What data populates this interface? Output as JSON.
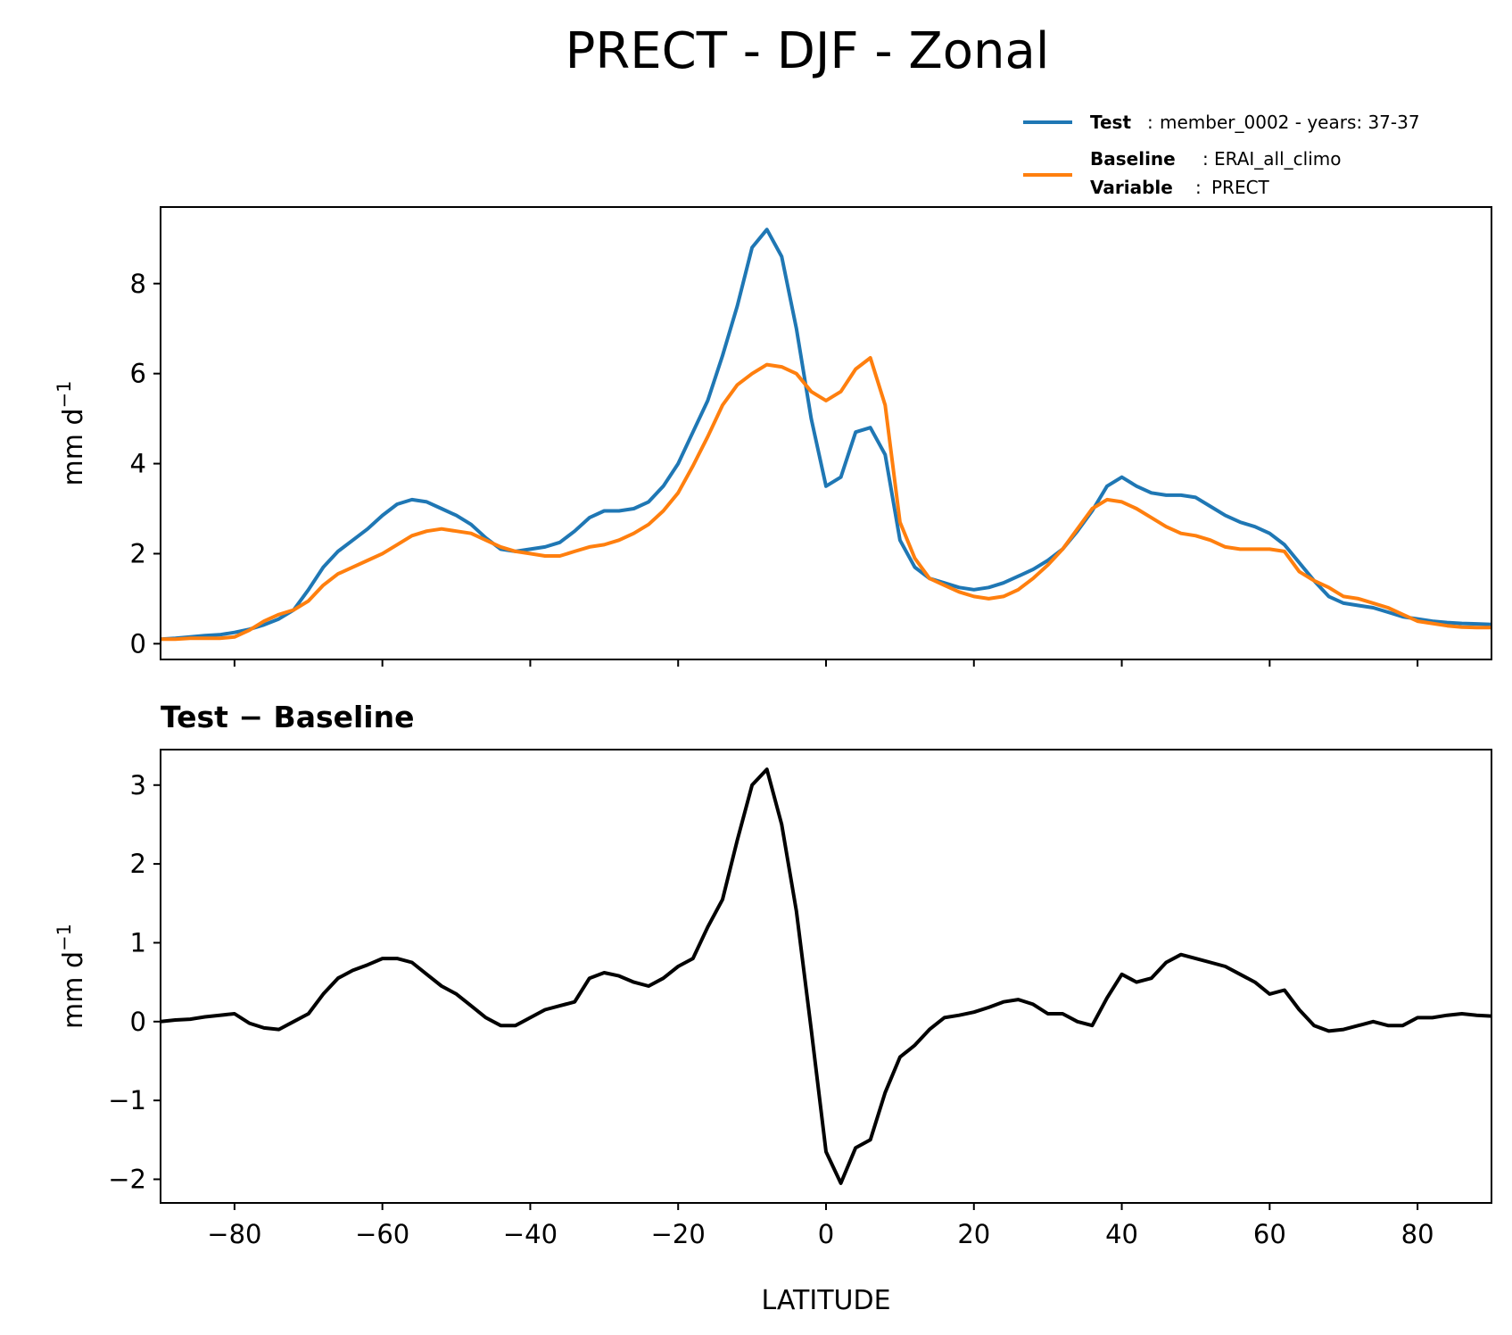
{
  "title": "PRECT - DJF - Zonal",
  "legend": {
    "test_label": "Test",
    "test_value": "member_0002 - years: 37-37",
    "baseline_label": "Baseline",
    "baseline_value": "ERAI_all_climo",
    "variable_label": "Variable",
    "variable_value": "PRECT",
    "separator": ":"
  },
  "colors": {
    "test": "#1f77b4",
    "baseline": "#ff7f0e",
    "diff": "#000000"
  },
  "chart_data": [
    {
      "type": "line",
      "title": "",
      "xlabel": "",
      "ylabel": "mm d",
      "ylabel_sup": "−1",
      "xlim": [
        -90,
        90
      ],
      "ylim": [
        -0.35,
        9.7
      ],
      "yticks": [
        0,
        2,
        4,
        6,
        8
      ],
      "ytick_labels": [
        "0",
        "2",
        "4",
        "6",
        "8"
      ],
      "xticks": [
        -80,
        -60,
        -40,
        -20,
        0,
        20,
        40,
        60,
        80
      ],
      "x": [
        -90,
        -88,
        -86,
        -84,
        -82,
        -80,
        -78,
        -76,
        -74,
        -72,
        -70,
        -68,
        -66,
        -64,
        -62,
        -60,
        -58,
        -56,
        -54,
        -52,
        -50,
        -48,
        -46,
        -44,
        -42,
        -40,
        -38,
        -36,
        -34,
        -32,
        -30,
        -28,
        -26,
        -24,
        -22,
        -20,
        -18,
        -16,
        -14,
        -12,
        -10,
        -8,
        -6,
        -4,
        -2,
        0,
        2,
        4,
        6,
        8,
        10,
        12,
        14,
        16,
        18,
        20,
        22,
        24,
        26,
        28,
        30,
        32,
        34,
        36,
        38,
        40,
        42,
        44,
        46,
        48,
        50,
        52,
        54,
        56,
        58,
        60,
        62,
        64,
        66,
        68,
        70,
        72,
        74,
        76,
        78,
        80,
        82,
        84,
        86,
        88,
        90
      ],
      "series": [
        {
          "name": "Test",
          "values": [
            0.1,
            0.12,
            0.15,
            0.18,
            0.2,
            0.25,
            0.32,
            0.42,
            0.55,
            0.75,
            1.2,
            1.7,
            2.05,
            2.3,
            2.55,
            2.85,
            3.1,
            3.2,
            3.15,
            3.0,
            2.85,
            2.65,
            2.35,
            2.1,
            2.05,
            2.1,
            2.15,
            2.25,
            2.5,
            2.8,
            2.95,
            2.95,
            3.0,
            3.15,
            3.5,
            4.0,
            4.7,
            5.4,
            6.4,
            7.5,
            8.8,
            9.2,
            8.6,
            7.0,
            5.0,
            3.5,
            3.7,
            4.7,
            4.8,
            4.2,
            2.3,
            1.7,
            1.45,
            1.35,
            1.25,
            1.2,
            1.25,
            1.35,
            1.5,
            1.65,
            1.85,
            2.1,
            2.5,
            2.95,
            3.5,
            3.7,
            3.5,
            3.35,
            3.3,
            3.3,
            3.25,
            3.05,
            2.85,
            2.7,
            2.6,
            2.45,
            2.2,
            1.8,
            1.4,
            1.05,
            0.9,
            0.85,
            0.8,
            0.7,
            0.6,
            0.55,
            0.5,
            0.47,
            0.45,
            0.44,
            0.43
          ]
        },
        {
          "name": "Baseline",
          "values": [
            0.1,
            0.1,
            0.12,
            0.12,
            0.12,
            0.15,
            0.3,
            0.5,
            0.65,
            0.75,
            0.95,
            1.3,
            1.55,
            1.7,
            1.85,
            2.0,
            2.2,
            2.4,
            2.5,
            2.55,
            2.5,
            2.45,
            2.3,
            2.15,
            2.05,
            2.0,
            1.95,
            1.95,
            2.05,
            2.15,
            2.2,
            2.3,
            2.45,
            2.65,
            2.95,
            3.35,
            3.95,
            4.6,
            5.3,
            5.75,
            6.0,
            6.2,
            6.15,
            6.0,
            5.6,
            5.4,
            5.6,
            6.1,
            6.35,
            5.3,
            2.7,
            1.9,
            1.45,
            1.3,
            1.15,
            1.05,
            1.0,
            1.05,
            1.2,
            1.45,
            1.75,
            2.1,
            2.55,
            3.0,
            3.2,
            3.15,
            3.0,
            2.8,
            2.6,
            2.45,
            2.4,
            2.3,
            2.15,
            2.1,
            2.1,
            2.1,
            2.05,
            1.6,
            1.4,
            1.25,
            1.05,
            1.0,
            0.9,
            0.8,
            0.65,
            0.5,
            0.45,
            0.4,
            0.37,
            0.36,
            0.36
          ]
        }
      ]
    },
    {
      "type": "line",
      "title": "Test − Baseline",
      "xlabel": "LATITUDE",
      "ylabel": "mm d",
      "ylabel_sup": "−1",
      "xlim": [
        -90,
        90
      ],
      "ylim": [
        -2.3,
        3.45
      ],
      "yticks": [
        -2,
        -1,
        0,
        1,
        2,
        3
      ],
      "ytick_labels": [
        "−2",
        "−1",
        "0",
        "1",
        "2",
        "3"
      ],
      "xticks": [
        -80,
        -60,
        -40,
        -20,
        0,
        20,
        40,
        60,
        80
      ],
      "xtick_labels": [
        "−80",
        "−60",
        "−40",
        "−20",
        "0",
        "20",
        "40",
        "60",
        "80"
      ],
      "x": [
        -90,
        -88,
        -86,
        -84,
        -82,
        -80,
        -78,
        -76,
        -74,
        -72,
        -70,
        -68,
        -66,
        -64,
        -62,
        -60,
        -58,
        -56,
        -54,
        -52,
        -50,
        -48,
        -46,
        -44,
        -42,
        -40,
        -38,
        -36,
        -34,
        -32,
        -30,
        -28,
        -26,
        -24,
        -22,
        -20,
        -18,
        -16,
        -14,
        -12,
        -10,
        -8,
        -6,
        -4,
        -2,
        0,
        2,
        4,
        6,
        8,
        10,
        12,
        14,
        16,
        18,
        20,
        22,
        24,
        26,
        28,
        30,
        32,
        34,
        36,
        38,
        40,
        42,
        44,
        46,
        48,
        50,
        52,
        54,
        56,
        58,
        60,
        62,
        64,
        66,
        68,
        70,
        72,
        74,
        76,
        78,
        80,
        82,
        84,
        86,
        88,
        90
      ],
      "series": [
        {
          "name": "Test − Baseline",
          "values": [
            0.0,
            0.02,
            0.03,
            0.06,
            0.08,
            0.1,
            -0.02,
            -0.08,
            -0.1,
            0.0,
            0.1,
            0.35,
            0.55,
            0.65,
            0.72,
            0.8,
            0.8,
            0.75,
            0.6,
            0.45,
            0.35,
            0.2,
            0.05,
            -0.05,
            -0.05,
            0.05,
            0.15,
            0.2,
            0.25,
            0.55,
            0.62,
            0.58,
            0.5,
            0.45,
            0.55,
            0.7,
            0.8,
            1.2,
            1.55,
            2.3,
            3.0,
            3.2,
            2.5,
            1.4,
            -0.1,
            -1.65,
            -2.05,
            -1.6,
            -1.5,
            -0.9,
            -0.45,
            -0.3,
            -0.1,
            0.05,
            0.08,
            0.12,
            0.18,
            0.25,
            0.28,
            0.22,
            0.1,
            0.1,
            0.0,
            -0.05,
            0.3,
            0.6,
            0.5,
            0.55,
            0.75,
            0.85,
            0.8,
            0.75,
            0.7,
            0.6,
            0.5,
            0.35,
            0.4,
            0.15,
            -0.05,
            -0.12,
            -0.1,
            -0.05,
            0.0,
            -0.05,
            -0.05,
            0.05,
            0.05,
            0.08,
            0.1,
            0.08,
            0.07
          ]
        }
      ]
    }
  ]
}
